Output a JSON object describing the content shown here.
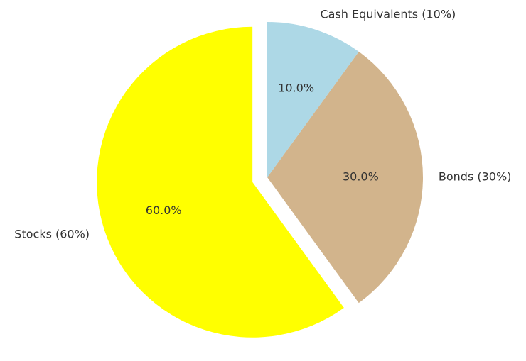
{
  "chart_data": {
    "type": "pie",
    "categories": [
      "Stocks (60%)",
      "Bonds (30%)",
      "Cash Equivalents (10%)"
    ],
    "values": [
      60,
      30,
      10
    ],
    "value_labels": [
      "60.0%",
      "30.0%",
      "10.0%"
    ],
    "colors": [
      "#ffff00",
      "#d2b48c",
      "#add8e6"
    ],
    "explode": [
      0.1,
      0,
      0
    ],
    "startangle": 90
  }
}
